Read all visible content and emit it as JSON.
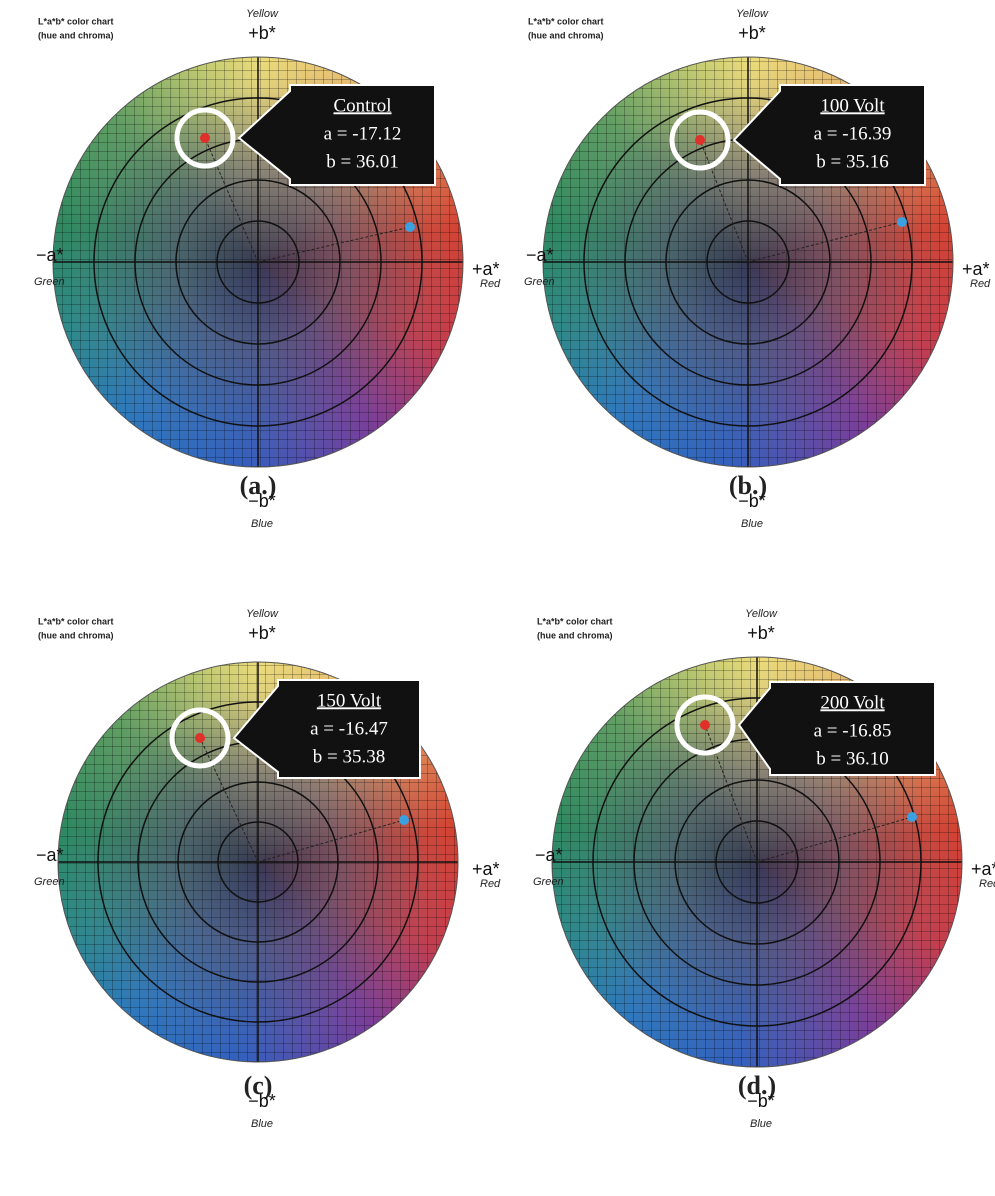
{
  "panels": [
    {
      "header": {
        "title": "L*a*b* color chart",
        "subtitle": "(hue and chroma)"
      },
      "axes": {
        "top": "+b*",
        "top_name": "Yellow",
        "left": "−a*",
        "left_name": "Green",
        "right": "+a*",
        "right_name": "Red",
        "bottom": "−b*",
        "bottom_name": "Blue"
      },
      "callout": {
        "title": "Control",
        "a": "a = -17.12",
        "b": "b = 36.01"
      },
      "label": "(a.)"
    },
    {
      "header": {
        "title": "L*a*b* color chart",
        "subtitle": "(hue and chroma)"
      },
      "axes": {
        "top": "+b*",
        "top_name": "Yellow",
        "left": "−a*",
        "left_name": "Green",
        "right": "+a*",
        "right_name": "Red",
        "bottom": "−b*",
        "bottom_name": "Blue"
      },
      "callout": {
        "title": "100 Volt",
        "a": "a = -16.39",
        "b": "b = 35.16"
      },
      "label": "(b.)"
    },
    {
      "header": {
        "title": "L*a*b* color chart",
        "subtitle": "(hue and chroma)"
      },
      "axes": {
        "top": "+b*",
        "top_name": "Yellow",
        "left": "−a*",
        "left_name": "Green",
        "right": "+a*",
        "right_name": "Red",
        "bottom": "−b*",
        "bottom_name": "Blue"
      },
      "callout": {
        "title": "150 Volt",
        "a": "a = -16.47",
        "b": "b = 35.38"
      },
      "label": "(c)"
    },
    {
      "header": {
        "title": "L*a*b* color chart",
        "subtitle": "(hue and chroma)"
      },
      "axes": {
        "top": "+b*",
        "top_name": "Yellow",
        "left": "−a*",
        "left_name": "Green",
        "right": "+a*",
        "right_name": "Red",
        "bottom": "−b*",
        "bottom_name": "Blue"
      },
      "callout": {
        "title": "200 Volt",
        "a": "a = -16.85",
        "b": "b = 36.10"
      },
      "label": "(d.)"
    }
  ]
}
